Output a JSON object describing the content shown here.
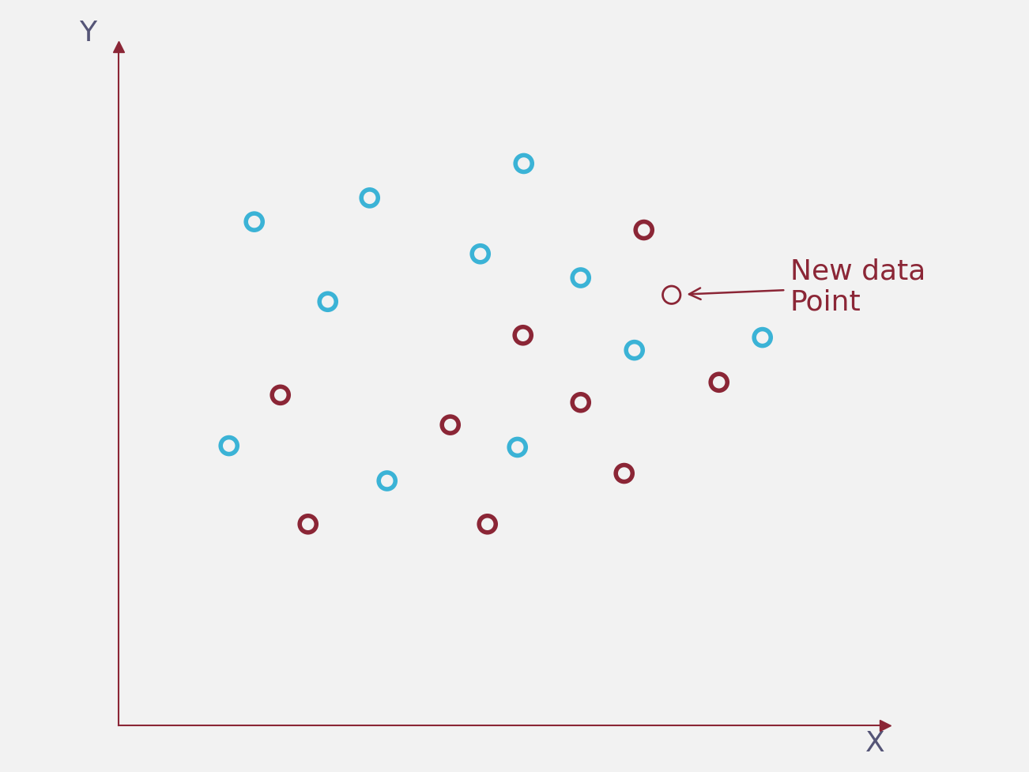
{
  "chart_data": {
    "type": "scatter",
    "x_label": "X",
    "y_label": "Y",
    "xlim": [
      0,
      97
    ],
    "ylim": [
      0,
      91
    ],
    "tick_labels": false,
    "grid": false,
    "series": [
      {
        "color": "#3bb3d6",
        "marker": "o",
        "x": [
          51.3,
          31.8,
          17.2,
          45.8,
          58.5,
          26.5,
          65.3,
          81.5,
          14.0,
          50.5,
          34.0
        ],
        "values": [
          75.3,
          70.7,
          67.5,
          63.2,
          60.0,
          56.8,
          50.3,
          52.0,
          37.5,
          37.3,
          32.8
        ]
      },
      {
        "color": "#8b2636",
        "marker": "o",
        "x": [
          66.5,
          51.2,
          20.5,
          76.0,
          58.5,
          42.0,
          64.0,
          24.0,
          46.7
        ],
        "values": [
          66.4,
          52.3,
          44.3,
          46.0,
          43.3,
          40.3,
          33.8,
          27.0,
          27.0
        ]
      },
      {
        "color": "#8b2636",
        "marker": "o",
        "x": [
          70.0
        ],
        "values": [
          57.7
        ]
      }
    ],
    "annotations": [
      {
        "text": "New data\nPoint",
        "x": 70.0,
        "y": 57.7
      }
    ]
  }
}
